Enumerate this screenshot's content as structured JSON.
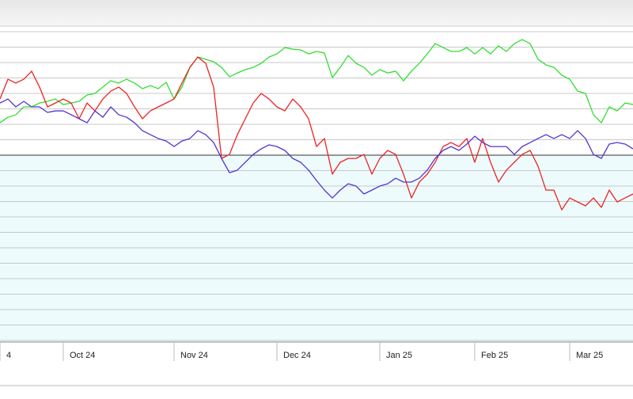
{
  "chart_data": {
    "type": "line",
    "categories": [
      "4",
      null,
      null,
      null,
      null,
      null,
      null,
      null,
      "Oct 24",
      null,
      null,
      null,
      null,
      null,
      null,
      null,
      null,
      null,
      null,
      null,
      null,
      null,
      "Nov 24",
      null,
      null,
      null,
      null,
      null,
      null,
      null,
      null,
      null,
      null,
      null,
      null,
      "Dec 24",
      null,
      null,
      null,
      null,
      null,
      null,
      null,
      null,
      null,
      null,
      null,
      null,
      "Jan 25",
      null,
      null,
      null,
      null,
      null,
      null,
      null,
      null,
      null,
      null,
      null,
      "Feb 25",
      null,
      null,
      null,
      null,
      null,
      null,
      null,
      null,
      null,
      null,
      null,
      "Mar 25",
      null,
      null,
      null,
      null,
      null,
      null,
      null,
      null
    ],
    "series": [
      {
        "color": "#33dd33",
        "values": [
          2.1,
          2.46,
          2.62,
          3.13,
          3.13,
          3.38,
          3.49,
          3.64,
          3.28,
          3.38,
          3.49,
          3.9,
          4.0,
          4.41,
          4.82,
          4.67,
          4.92,
          4.67,
          4.31,
          4.51,
          4.31,
          4.72,
          3.64,
          4.41,
          5.69,
          6.36,
          6.21,
          6.05,
          5.69,
          5.08,
          5.33,
          5.54,
          5.69,
          5.95,
          6.36,
          6.56,
          6.97,
          6.87,
          6.82,
          6.56,
          6.72,
          6.62,
          5.03,
          5.69,
          6.46,
          5.95,
          5.69,
          5.18,
          5.54,
          5.33,
          5.44,
          4.82,
          5.44,
          5.95,
          6.56,
          7.23,
          6.97,
          6.72,
          6.72,
          6.97,
          6.56,
          6.97,
          6.56,
          7.08,
          6.72,
          7.23,
          7.49,
          7.23,
          6.21,
          5.85,
          5.69,
          5.18,
          4.92,
          4.15,
          4.0,
          2.62,
          2.1,
          3.13,
          2.87,
          3.38,
          3.28
        ]
      },
      {
        "color": "#ee2222",
        "values": [
          3.64,
          4.92,
          4.67,
          4.92,
          5.44,
          4.41,
          3.13,
          3.38,
          3.64,
          3.38,
          2.36,
          3.38,
          2.87,
          3.64,
          4.15,
          4.41,
          4.0,
          3.13,
          2.36,
          2.87,
          3.13,
          3.38,
          3.64,
          4.67,
          5.69,
          6.36,
          5.95,
          4.41,
          -0.21,
          0.05,
          1.33,
          2.36,
          3.38,
          4.0,
          3.64,
          3.13,
          2.87,
          3.64,
          3.13,
          2.36,
          0.56,
          1.08,
          -1.23,
          -0.46,
          -0.21,
          -0.21,
          0.05,
          -1.23,
          -0.21,
          0.31,
          0.05,
          -1.23,
          -2.77,
          -1.74,
          -1.23,
          -0.46,
          0.56,
          0.82,
          0.56,
          1.08,
          -0.46,
          1.08,
          -0.46,
          -1.74,
          -0.97,
          -0.46,
          0.05,
          0.31,
          -0.72,
          -2.26,
          -2.26,
          -3.54,
          -2.77,
          -3.03,
          -3.28,
          -2.77,
          -3.38,
          -2.26,
          -3.03,
          -2.77,
          -2.51
        ]
      },
      {
        "color": "#5533cc",
        "values": [
          3.38,
          3.64,
          3.13,
          3.49,
          3.13,
          3.13,
          2.77,
          2.87,
          2.87,
          2.62,
          2.36,
          2.1,
          2.87,
          2.46,
          3.13,
          2.62,
          2.46,
          2.1,
          1.59,
          1.33,
          1.08,
          0.92,
          0.56,
          0.92,
          1.08,
          1.59,
          1.33,
          0.82,
          -0.21,
          -1.13,
          -0.97,
          -0.46,
          0.05,
          0.41,
          0.67,
          0.56,
          0.31,
          -0.21,
          -0.46,
          -0.97,
          -1.64,
          -2.26,
          -2.77,
          -2.26,
          -1.85,
          -2.0,
          -2.51,
          -2.26,
          -2.0,
          -1.85,
          -1.49,
          -1.74,
          -1.74,
          -1.49,
          -0.97,
          -0.21,
          0.31,
          0.56,
          0.31,
          0.72,
          1.23,
          0.82,
          0.56,
          0.56,
          0.56,
          0.05,
          0.56,
          0.82,
          1.08,
          1.33,
          1.08,
          1.33,
          1.08,
          1.59,
          1.08,
          0.05,
          -0.21,
          0.72,
          0.82,
          0.72,
          0.41
        ]
      }
    ],
    "ylim": [
      -12.1,
      8.36
    ],
    "yticks": [
      -12,
      -11,
      -10,
      -9,
      -8,
      -7,
      -6,
      -5,
      -4,
      -3,
      -2,
      -1,
      0,
      1,
      2,
      3,
      4,
      5,
      6,
      7,
      8
    ],
    "baseline": 0,
    "grid": true,
    "below_baseline_color": "#eefbfd"
  }
}
